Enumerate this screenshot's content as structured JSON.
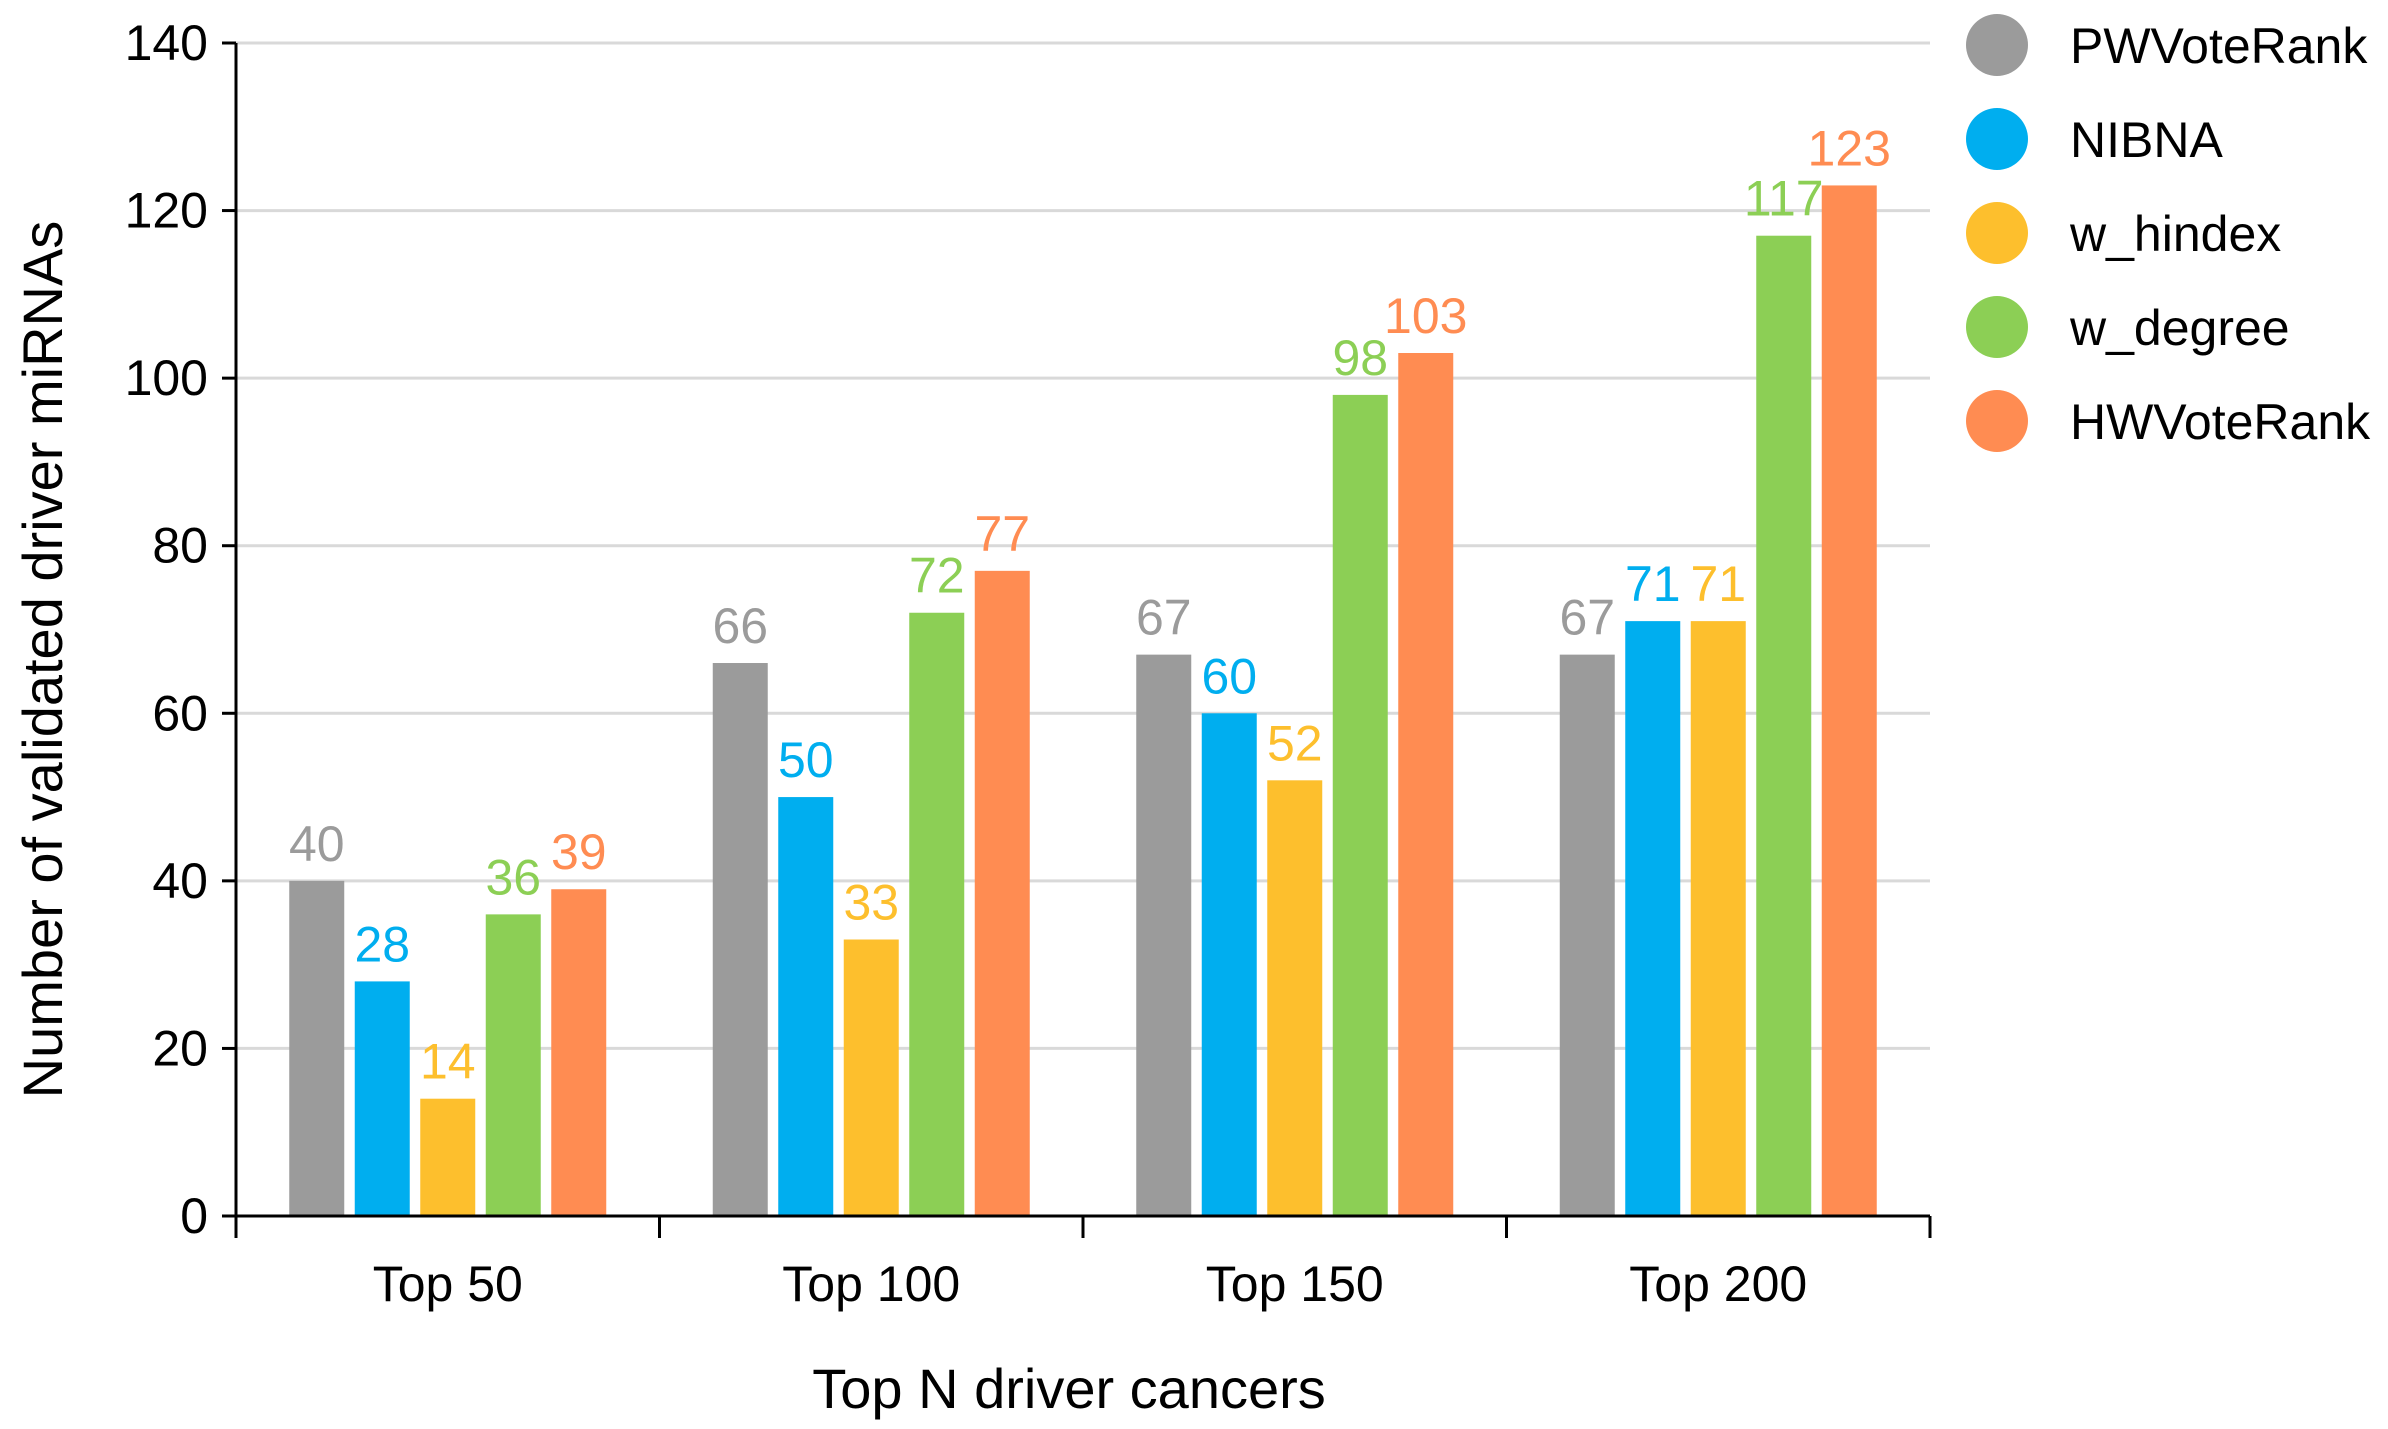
{
  "chart_data": {
    "type": "bar",
    "title": "",
    "xlabel": "Top N driver cancers",
    "ylabel": "Number of validated driver miRNAs",
    "ylim": [
      0,
      140
    ],
    "yticks": [
      "0",
      "20",
      "40",
      "60",
      "80",
      "100",
      "120",
      "140"
    ],
    "grid": true,
    "legend_position": "top-right",
    "categories": [
      "Top 50",
      "Top 100",
      "Top 150",
      "Top 200"
    ],
    "series": [
      {
        "name": "PWVoteRank",
        "color": "#9b9b9b",
        "values": [
          40,
          66,
          67,
          67
        ]
      },
      {
        "name": "NIBNA",
        "color": "#00aeef",
        "values": [
          28,
          50,
          60,
          71
        ]
      },
      {
        "name": "w_hindex",
        "color": "#fdbf2d",
        "values": [
          14,
          33,
          52,
          71
        ]
      },
      {
        "name": "w_degree",
        "color": "#8ccf55",
        "values": [
          36,
          72,
          98,
          117
        ]
      },
      {
        "name": "HWVoteRank",
        "color": "#ff8c52",
        "values": [
          39,
          77,
          103,
          123
        ]
      }
    ]
  }
}
